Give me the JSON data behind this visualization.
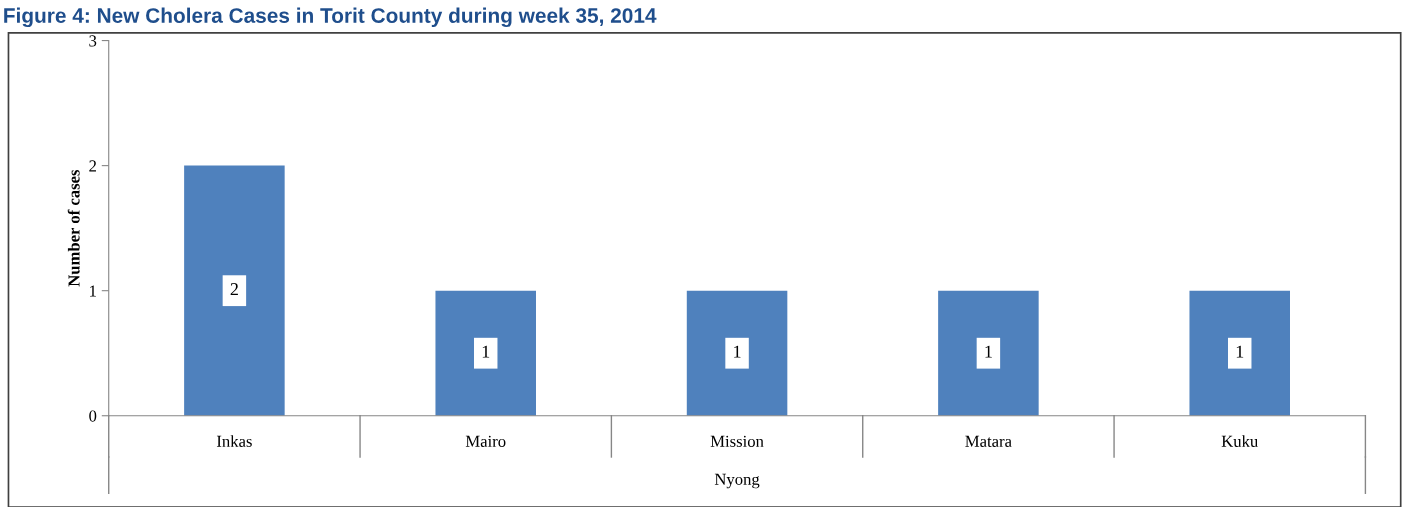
{
  "chart_data": {
    "type": "bar",
    "title": "Figure 4: New Cholera Cases in Torit County during week 35, 2014",
    "categories": [
      "Inkas",
      "Mairo",
      "Mission",
      "Matara",
      "Kuku"
    ],
    "values": [
      2,
      1,
      1,
      1,
      1
    ],
    "color": "#4f81bd",
    "xlabel": "Nyong",
    "ylabel": "Number of cases",
    "ylim": [
      0,
      3
    ],
    "yticks": [
      0,
      1,
      2,
      3
    ],
    "grid": false,
    "data_labels": true
  }
}
